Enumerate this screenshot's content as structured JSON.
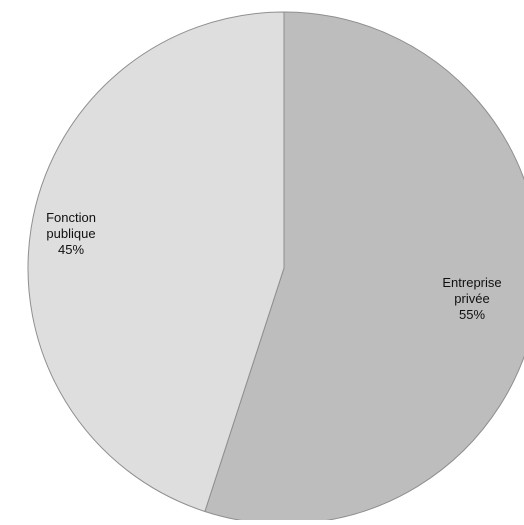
{
  "chart_data": {
    "type": "pie",
    "title": "",
    "slices": [
      {
        "label_lines": [
          "Entreprise",
          "privée"
        ],
        "pct_label": "55%",
        "value": 55,
        "color": "#bdbdbd"
      },
      {
        "label_lines": [
          "Fonction",
          "publique"
        ],
        "pct_label": "45%",
        "value": 45,
        "color": "#dedede"
      }
    ],
    "start_angle_deg": 0,
    "direction": "clockwise",
    "legend": "none"
  }
}
